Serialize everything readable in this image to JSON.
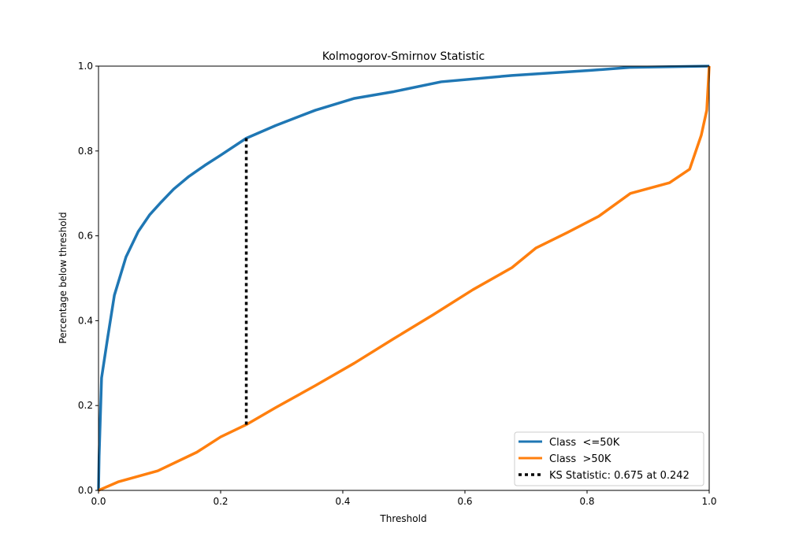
{
  "chart_data": {
    "type": "line",
    "title": "Kolmogorov-Smirnov Statistic",
    "xlabel": "Threshold",
    "ylabel": "Percentage below threshold",
    "xlim": [
      0,
      1
    ],
    "ylim": [
      0,
      1
    ],
    "xticks": [
      "0.0",
      "0.2",
      "0.4",
      "0.6",
      "0.8",
      "1.0"
    ],
    "yticks": [
      "0.0",
      "0.2",
      "0.4",
      "0.6",
      "0.8",
      "1.0"
    ],
    "grid": false,
    "legend_position": "lower-right",
    "series": [
      {
        "name": "Class  <=50K",
        "color": "#1f77b4",
        "x": [
          0,
          0.001,
          0.005,
          0.015,
          0.026,
          0.045,
          0.065,
          0.084,
          0.103,
          0.123,
          0.148,
          0.174,
          0.2,
          0.242,
          0.29,
          0.355,
          0.419,
          0.484,
          0.561,
          0.677,
          0.806,
          0.87,
          1.0
        ],
        "y": [
          0,
          0.08,
          0.265,
          0.36,
          0.46,
          0.55,
          0.61,
          0.65,
          0.68,
          0.71,
          0.74,
          0.766,
          0.79,
          0.83,
          0.86,
          0.896,
          0.924,
          0.94,
          0.963,
          0.978,
          0.99,
          0.997,
          1.0
        ]
      },
      {
        "name": "Class  >50K",
        "color": "#ff7f0e",
        "x": [
          0,
          0.032,
          0.097,
          0.161,
          0.2,
          0.242,
          0.29,
          0.355,
          0.419,
          0.484,
          0.548,
          0.613,
          0.677,
          0.716,
          0.768,
          0.819,
          0.871,
          0.935,
          0.968,
          0.987,
          0.996,
          1.0
        ],
        "y": [
          0,
          0.02,
          0.046,
          0.09,
          0.126,
          0.155,
          0.195,
          0.247,
          0.3,
          0.358,
          0.414,
          0.473,
          0.525,
          0.571,
          0.608,
          0.646,
          0.7,
          0.725,
          0.757,
          0.837,
          0.896,
          1.0
        ]
      }
    ],
    "ks_statistic": {
      "label": "KS Statistic: 0.675 at 0.242",
      "value": 0.675,
      "threshold": 0.242,
      "y_low": 0.155,
      "y_high": 0.83,
      "color": "#000000"
    }
  }
}
